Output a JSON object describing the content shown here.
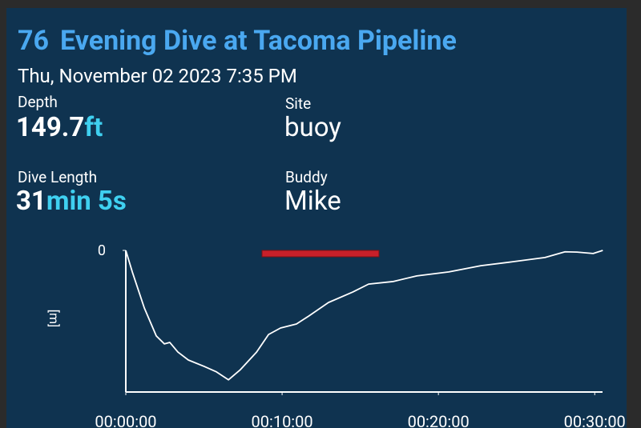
{
  "header": {
    "dive_number": "76",
    "title": "Evening Dive at Tacoma Pipeline",
    "datetime": "Thu, November 02 2023 7:35 PM"
  },
  "stats": [
    {
      "label": "Depth",
      "value": "149.7",
      "unit": "ft"
    },
    {
      "label": "Site",
      "value": "buoy"
    },
    {
      "label": "Dive Length",
      "value": "31",
      "unit": "min 5s"
    },
    {
      "label": "Buddy",
      "value": "Mike"
    }
  ],
  "chart_data": {
    "type": "line",
    "y_label": "[m]",
    "y_inverted": true,
    "x": [
      0,
      25,
      71,
      117,
      148,
      169,
      200,
      240,
      302,
      348,
      394,
      440,
      502,
      548,
      594,
      655,
      702,
      778,
      871,
      932,
      1025,
      1117,
      1240,
      1363,
      1486,
      1609,
      1686,
      1732,
      1794,
      1831
    ],
    "series": [
      {
        "color": "#ffffff",
        "values": [
          0,
          7.6,
          20.3,
          30.2,
          33,
          32.5,
          35.9,
          38.7,
          41,
          42.9,
          45.7,
          42.1,
          35.9,
          29.7,
          27.4,
          26,
          23.2,
          18.4,
          14.7,
          11.9,
          11,
          9,
          7.6,
          5.4,
          4,
          2.5,
          0.5,
          0.6,
          1.1,
          0
        ]
      }
    ],
    "xlim": [
      0,
      1830
    ],
    "ylim": [
      0,
      50
    ],
    "xticks": [
      {
        "value": 0,
        "label": "00:00:00"
      },
      {
        "value": 600,
        "label": "00:10:00"
      },
      {
        "value": 1200,
        "label": "00:20:00"
      },
      {
        "value": 1800,
        "label": "00:30:00"
      }
    ],
    "yticks": [
      0
    ]
  }
}
